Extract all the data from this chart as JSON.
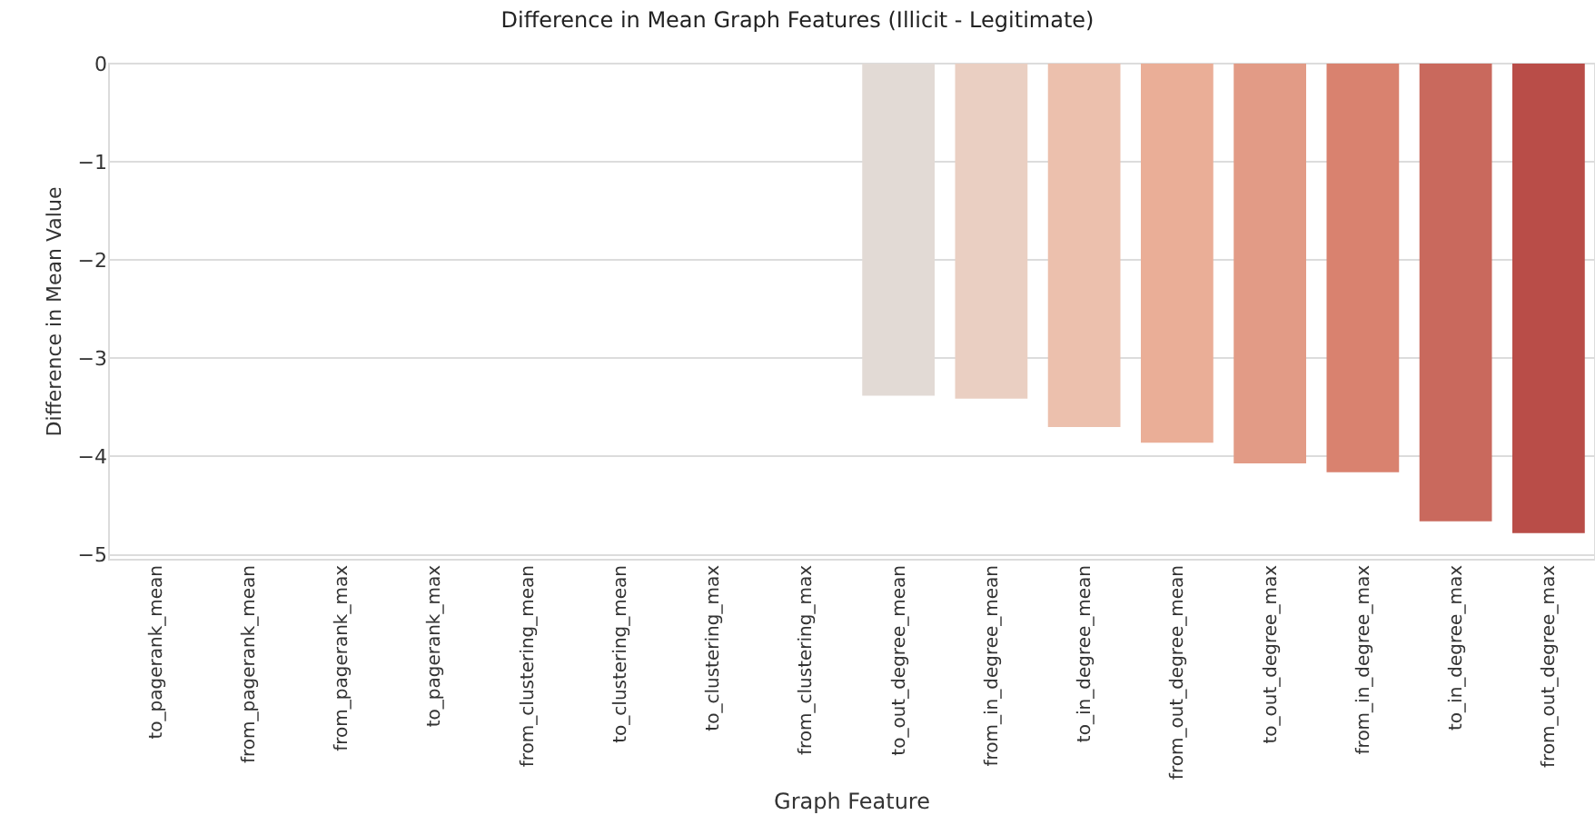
{
  "chart_data": {
    "type": "bar",
    "title": "Difference in Mean Graph Features (Illicit - Legitimate)",
    "xlabel": "Graph Feature",
    "ylabel": "Difference in Mean Value",
    "categories": [
      "to_pagerank_mean",
      "from_pagerank_mean",
      "from_pagerank_max",
      "to_pagerank_max",
      "from_clustering_mean",
      "to_clustering_mean",
      "to_clustering_max",
      "from_clustering_max",
      "to_out_degree_mean",
      "from_in_degree_mean",
      "to_in_degree_mean",
      "from_out_degree_mean",
      "to_out_degree_max",
      "from_in_degree_max",
      "to_in_degree_max",
      "from_out_degree_max"
    ],
    "values": [
      0,
      0,
      0,
      0,
      0,
      0,
      0,
      0,
      -3.38,
      -3.41,
      -3.7,
      -3.86,
      -4.07,
      -4.16,
      -4.66,
      -4.78
    ],
    "colors": [
      "#e2dad5",
      "#e2dad5",
      "#e2dad5",
      "#e2dad5",
      "#e2dad5",
      "#e2dad5",
      "#e2dad5",
      "#e2dad5",
      "#e2dad5",
      "#eacfc2",
      "#ecc0ad",
      "#eaae97",
      "#e29b86",
      "#d9826f",
      "#c9695d",
      "#b94d48"
    ],
    "ylim": [
      -5.05,
      0
    ],
    "yticks": [
      {
        "value": 0,
        "label": "0"
      },
      {
        "value": -1,
        "label": "−1"
      },
      {
        "value": -2,
        "label": "−2"
      },
      {
        "value": -3,
        "label": "−3"
      },
      {
        "value": -4,
        "label": "−4"
      },
      {
        "value": -5,
        "label": "−5"
      }
    ],
    "grid": "y"
  }
}
